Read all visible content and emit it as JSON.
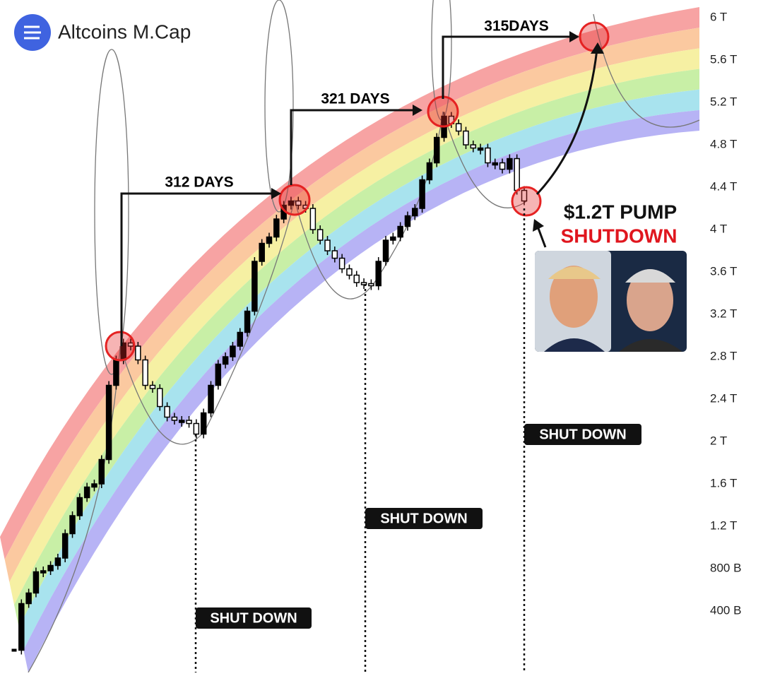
{
  "chart_data": {
    "type": "candlestick",
    "title": "Altcoins M.Cap",
    "color": "#000000",
    "values": [
      30,
      470,
      570,
      770,
      780,
      830,
      900,
      1130,
      1300,
      1470,
      1570,
      1600,
      1830,
      2530,
      2770,
      2930,
      2900,
      2770,
      2530,
      2500,
      2330,
      2230,
      2200,
      2200,
      2170,
      2070,
      2270,
      2530,
      2730,
      2800,
      2900,
      3030,
      3230,
      3700,
      3870,
      3930,
      4100,
      4230,
      4270,
      4230,
      4200,
      4000,
      3900,
      3800,
      3730,
      3630,
      3570,
      3500,
      3490,
      3470,
      3700,
      3900,
      3930,
      4030,
      4130,
      4200,
      4470,
      4630,
      4870,
      5070,
      5000,
      4930,
      4800,
      4770,
      4770,
      4630,
      4630,
      4570,
      4670,
      4370,
      4270
    ],
    "ylim": [
      -180,
      6167
    ],
    "yticks": [
      {
        "value": 400,
        "label": "400 B"
      },
      {
        "value": 800,
        "label": "800 B"
      },
      {
        "value": 1200,
        "label": "1.2 T"
      },
      {
        "value": 1600,
        "label": "1.6 T"
      },
      {
        "value": 2000,
        "label": "2 T"
      },
      {
        "value": 2400,
        "label": "2.4 T"
      },
      {
        "value": 2800,
        "label": "2.8 T"
      },
      {
        "value": 3200,
        "label": "3.2 T"
      },
      {
        "value": 3600,
        "label": "3.6 T"
      },
      {
        "value": 4000,
        "label": "4 T"
      },
      {
        "value": 4400,
        "label": "4.4 T"
      },
      {
        "value": 4800,
        "label": "4.8 T"
      },
      {
        "value": 5200,
        "label": "5.2 T"
      },
      {
        "value": 5600,
        "label": "5.6 T"
      },
      {
        "value": 6000,
        "label": "6 T"
      }
    ],
    "annotations": [
      "312 DAYS",
      "321 DAYS",
      "315DAYS",
      "SHUT DOWN",
      "SHUT DOWN",
      "SHUT DOWN",
      "$1.2T PUMP",
      "SHUTDOWN"
    ]
  }
}
